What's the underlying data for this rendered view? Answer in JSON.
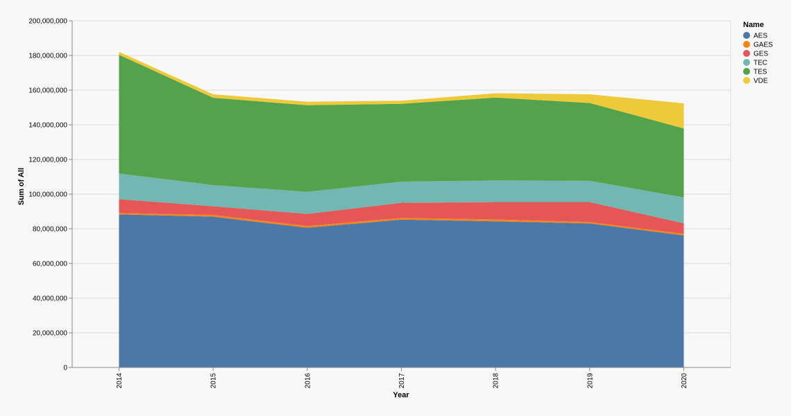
{
  "chart_data": {
    "type": "area",
    "stacked": true,
    "x": [
      "2014",
      "2015",
      "2016",
      "2017",
      "2018",
      "2019",
      "2020"
    ],
    "xlabel": "Year",
    "ylabel": "Sum of All",
    "ylim": [
      0,
      200000000
    ],
    "yticks": [
      0,
      20000000,
      40000000,
      60000000,
      80000000,
      100000000,
      120000000,
      140000000,
      160000000,
      180000000,
      200000000
    ],
    "ytick_labels": [
      "0",
      "20,000,000",
      "40,000,000",
      "60,000,000",
      "80,000,000",
      "100,000,000",
      "120,000,000",
      "140,000,000",
      "160,000,000",
      "180,000,000",
      "200,000,000"
    ],
    "grid": true,
    "legend_title": "Name",
    "legend_position": "top-right",
    "series": [
      {
        "name": "AES",
        "color": "#4c78a8",
        "values": [
          88300000,
          87000000,
          80600000,
          85300000,
          84300000,
          83100000,
          76200000
        ]
      },
      {
        "name": "GAES",
        "color": "#f58518",
        "values": [
          800000,
          1000000,
          1000000,
          1000000,
          1100000,
          800000,
          900000
        ]
      },
      {
        "name": "GES",
        "color": "#e45756",
        "values": [
          8000000,
          5000000,
          7000000,
          8700000,
          10000000,
          11500000,
          6100000
        ]
      },
      {
        "name": "TEC",
        "color": "#72b7b2",
        "values": [
          14800000,
          12200000,
          12700000,
          12200000,
          12500000,
          12300000,
          14900000
        ]
      },
      {
        "name": "TES",
        "color": "#54a24b",
        "values": [
          68500000,
          50400000,
          50000000,
          44900000,
          47800000,
          44900000,
          39800000
        ]
      },
      {
        "name": "VDE",
        "color": "#eeca3b",
        "values": [
          1700000,
          2000000,
          2000000,
          1800000,
          2500000,
          5000000,
          14500000
        ]
      }
    ]
  }
}
